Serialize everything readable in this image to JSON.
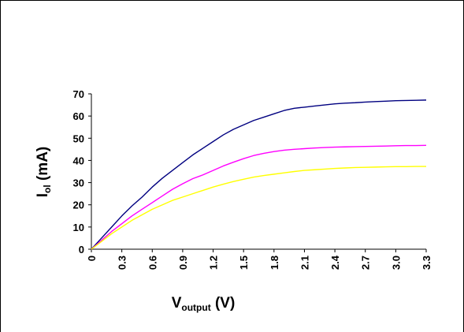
{
  "chart_data": {
    "type": "line",
    "x": [
      0,
      0.1,
      0.2,
      0.3,
      0.4,
      0.5,
      0.6,
      0.7,
      0.8,
      0.9,
      1.0,
      1.1,
      1.2,
      1.3,
      1.4,
      1.5,
      1.6,
      1.7,
      1.8,
      1.9,
      2.0,
      2.1,
      2.2,
      2.3,
      2.4,
      2.5,
      2.6,
      2.7,
      2.8,
      2.9,
      3.0,
      3.1,
      3.2,
      3.3
    ],
    "series": [
      {
        "color": "#000080",
        "values": [
          0,
          5,
          10,
          15,
          19.5,
          23.5,
          28,
          32,
          35.5,
          39,
          42.5,
          45.5,
          48.5,
          51.5,
          54,
          56,
          58,
          59.5,
          61,
          62.5,
          63.5,
          64,
          64.5,
          65,
          65.5,
          65.8,
          66,
          66.3,
          66.5,
          66.7,
          66.9,
          67,
          67.1,
          67.2
        ]
      },
      {
        "color": "#ff00ff",
        "values": [
          0,
          4,
          8,
          11.5,
          15,
          18,
          21,
          24,
          27,
          29.5,
          31.8,
          33.5,
          35.5,
          37.5,
          39.2,
          40.8,
          42.2,
          43.2,
          44,
          44.6,
          45,
          45.3,
          45.6,
          45.8,
          46,
          46.1,
          46.2,
          46.3,
          46.4,
          46.5,
          46.6,
          46.7,
          46.7,
          46.8
        ]
      },
      {
        "color": "#ffff00",
        "values": [
          0,
          3.5,
          7,
          10,
          13,
          15.5,
          18,
          20,
          22,
          23.5,
          25,
          26.5,
          28,
          29.3,
          30.5,
          31.5,
          32.5,
          33.2,
          33.8,
          34.4,
          35,
          35.5,
          35.8,
          36.1,
          36.4,
          36.6,
          36.8,
          36.9,
          37,
          37.1,
          37.2,
          37.2,
          37.3,
          37.3
        ]
      }
    ],
    "xlim": [
      0,
      3.3
    ],
    "ylim": [
      0,
      70
    ],
    "xticks": [
      "0",
      "0.3",
      "0.6",
      "0.9",
      "1.2",
      "1.5",
      "1.8",
      "2.1",
      "2.4",
      "2.7",
      "3.0",
      "3.3"
    ],
    "yticks": [
      "0",
      "10",
      "20",
      "30",
      "40",
      "50",
      "60",
      "70"
    ],
    "ylabel": {
      "main": "I",
      "sub": "ol",
      "rest": " (mA)"
    },
    "xlabel": {
      "main": "V",
      "sub": "output",
      "rest": " (V)"
    },
    "grid": false,
    "legend": "none"
  }
}
